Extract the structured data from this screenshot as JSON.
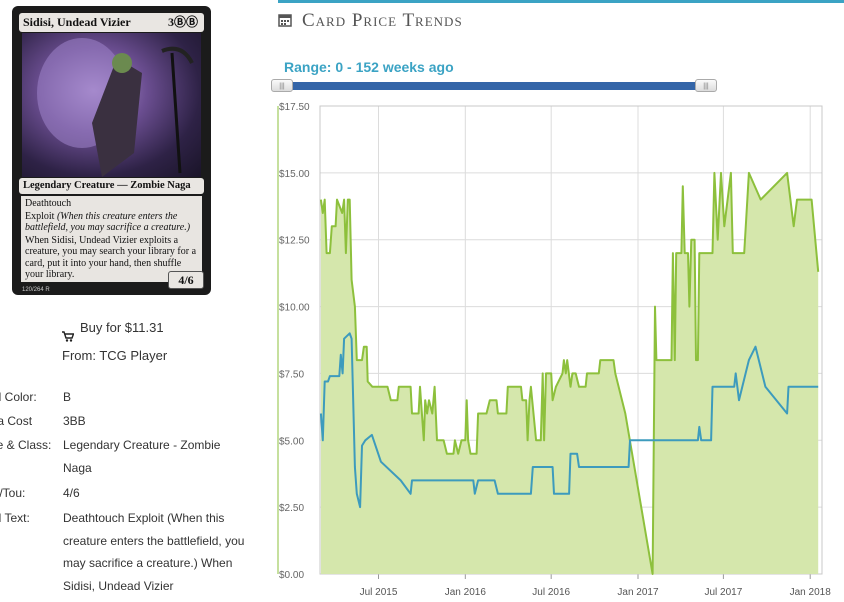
{
  "card": {
    "name": "Sidisi, Undead Vizier",
    "mana": "3ⒷⒷ",
    "type_line": "Legendary Creature — Zombie Naga",
    "keyword": "Deathtouch",
    "exploit": "Exploit",
    "exploit_reminder": "(When this creature enters the battlefield, you may sacrifice a creature.)",
    "ability": "When Sidisi, Undead Vizier exploits a creature, you may search your library for a card, put it into your hand, then shuffle your library.",
    "pt": "4/6",
    "collector": "120/264 R"
  },
  "buy": {
    "price": "Buy for $11.31",
    "from": "From: TCG Player"
  },
  "details": {
    "color_label": "ard Color:",
    "color_value": "B",
    "mana_label": "ana Cost",
    "mana_value": "3BB",
    "type_label": "ype & Class:",
    "type_value": "Legendary Creature - Zombie Naga",
    "powtou_label": "ow/Tou:",
    "powtou_value": "4/6",
    "text_label": "ard Text:",
    "text_value": "Deathtouch Exploit (When this creature enters the battlefield, you may sacrifice a creature.) When Sidisi, Undead Vizier"
  },
  "trends": {
    "title": "Card Price Trends",
    "range": "Range: 0 - 152 weeks ago",
    "handle_left": "|||",
    "handle_right": "|||"
  },
  "colors": {
    "accent": "#3ba3c4",
    "green": "#8dc03c",
    "green_fill": "#d5e7ac",
    "blue": "#3d9bbd"
  },
  "chart_data": {
    "type": "area",
    "ylim": [
      0,
      17.5
    ],
    "yticks": [
      0,
      2.5,
      5,
      7.5,
      10,
      12.5,
      15,
      17.5
    ],
    "ytick_labels": [
      "$0.00",
      "$2.50",
      "$5.00",
      "$7.50",
      "$10.00",
      "$12.50",
      "$15.00",
      "$17.50"
    ],
    "xlim": [
      "2015-02-27",
      "2018-01-26"
    ],
    "xticks": [
      "2015-07-01",
      "2016-01-01",
      "2016-07-01",
      "2017-01-01",
      "2017-07-01",
      "2018-01-01"
    ],
    "xtick_labels": [
      "Jul 2015",
      "Jan 2016",
      "Jul 2016",
      "Jan 2017",
      "Jul 2017",
      "Jan 2018"
    ],
    "series": [
      {
        "points": [
          [
            "2015-03-01",
            14
          ],
          [
            "2015-03-05",
            13.5
          ],
          [
            "2015-03-09",
            14
          ],
          [
            "2015-03-13",
            12
          ],
          [
            "2015-03-20",
            12
          ],
          [
            "2015-03-24",
            13
          ],
          [
            "2015-04-01",
            13
          ],
          [
            "2015-04-04",
            14
          ],
          [
            "2015-04-15",
            13.5
          ],
          [
            "2015-04-19",
            14
          ],
          [
            "2015-04-23",
            12
          ],
          [
            "2015-04-27",
            14
          ],
          [
            "2015-05-01",
            14
          ],
          [
            "2015-05-05",
            11
          ],
          [
            "2015-05-12",
            10
          ],
          [
            "2015-05-16",
            8
          ],
          [
            "2015-05-27",
            8
          ],
          [
            "2015-05-31",
            8.5
          ],
          [
            "2015-06-06",
            8.5
          ],
          [
            "2015-06-08",
            7.2
          ],
          [
            "2015-06-18",
            7
          ],
          [
            "2015-07-20",
            7
          ],
          [
            "2015-07-27",
            6.5
          ],
          [
            "2015-08-10",
            6.5
          ],
          [
            "2015-08-13",
            7
          ],
          [
            "2015-09-07",
            7
          ],
          [
            "2015-09-10",
            6
          ],
          [
            "2015-09-24",
            6
          ],
          [
            "2015-09-27",
            7
          ],
          [
            "2015-10-05",
            5
          ],
          [
            "2015-10-08",
            6.5
          ],
          [
            "2015-10-12",
            6
          ],
          [
            "2015-10-16",
            6.5
          ],
          [
            "2015-10-23",
            6
          ],
          [
            "2015-10-28",
            7
          ],
          [
            "2015-11-02",
            5
          ],
          [
            "2015-11-16",
            5
          ],
          [
            "2015-11-23",
            4.5
          ],
          [
            "2015-12-07",
            4.5
          ],
          [
            "2015-12-10",
            5
          ],
          [
            "2015-12-17",
            4.5
          ],
          [
            "2015-12-24",
            5
          ],
          [
            "2016-01-01",
            5
          ],
          [
            "2016-01-04",
            6.5
          ],
          [
            "2016-01-07",
            5
          ],
          [
            "2016-01-12",
            4.5
          ],
          [
            "2016-01-25",
            4.5
          ],
          [
            "2016-01-28",
            6
          ],
          [
            "2016-02-15",
            6
          ],
          [
            "2016-02-22",
            6.5
          ],
          [
            "2016-03-07",
            6.5
          ],
          [
            "2016-03-10",
            6
          ],
          [
            "2016-03-28",
            6
          ],
          [
            "2016-03-31",
            7
          ],
          [
            "2016-04-28",
            7
          ],
          [
            "2016-05-01",
            6.5
          ],
          [
            "2016-05-09",
            6.5
          ],
          [
            "2016-05-12",
            5
          ],
          [
            "2016-05-16",
            6.5
          ],
          [
            "2016-05-19",
            7
          ],
          [
            "2016-05-30",
            5
          ],
          [
            "2016-06-09",
            5
          ],
          [
            "2016-06-13",
            7.5
          ],
          [
            "2016-06-16",
            5
          ],
          [
            "2016-06-20",
            7.5
          ],
          [
            "2016-07-01",
            7.5
          ],
          [
            "2016-07-04",
            6.5
          ],
          [
            "2016-07-11",
            7
          ],
          [
            "2016-07-25",
            7.5
          ],
          [
            "2016-07-28",
            8
          ],
          [
            "2016-08-01",
            7.5
          ],
          [
            "2016-08-04",
            8
          ],
          [
            "2016-08-11",
            7
          ],
          [
            "2016-08-15",
            7.5
          ],
          [
            "2016-08-22",
            7.5
          ],
          [
            "2016-08-29",
            7
          ],
          [
            "2016-09-12",
            7
          ],
          [
            "2016-09-15",
            7.5
          ],
          [
            "2016-10-10",
            7.5
          ],
          [
            "2016-10-13",
            8
          ],
          [
            "2016-11-10",
            8
          ],
          [
            "2016-11-14",
            7.5
          ],
          [
            "2016-12-05",
            6
          ],
          [
            "2017-02-01",
            0
          ],
          [
            "2017-02-06",
            10
          ],
          [
            "2017-02-09",
            8
          ],
          [
            "2017-03-13",
            8
          ],
          [
            "2017-03-16",
            12
          ],
          [
            "2017-03-20",
            8
          ],
          [
            "2017-03-23",
            12
          ],
          [
            "2017-04-03",
            12
          ],
          [
            "2017-04-06",
            14.5
          ],
          [
            "2017-04-10",
            12
          ],
          [
            "2017-04-17",
            12
          ],
          [
            "2017-04-20",
            10
          ],
          [
            "2017-04-24",
            12.5
          ],
          [
            "2017-05-01",
            12.5
          ],
          [
            "2017-05-04",
            8
          ],
          [
            "2017-05-08",
            8
          ],
          [
            "2017-05-11",
            12
          ],
          [
            "2017-06-08",
            12
          ],
          [
            "2017-06-12",
            15
          ],
          [
            "2017-06-19",
            12.5
          ],
          [
            "2017-06-26",
            15
          ],
          [
            "2017-07-03",
            13
          ],
          [
            "2017-07-10",
            14
          ],
          [
            "2017-07-17",
            15
          ],
          [
            "2017-07-21",
            12
          ],
          [
            "2017-08-14",
            12
          ],
          [
            "2017-08-24",
            15
          ],
          [
            "2017-09-18",
            14
          ],
          [
            "2017-11-13",
            15
          ],
          [
            "2017-11-27",
            13
          ],
          [
            "2017-12-04",
            14
          ],
          [
            "2018-01-04",
            14
          ],
          [
            "2018-01-18",
            11.3
          ]
        ]
      },
      {
        "points": [
          [
            "2015-03-01",
            6
          ],
          [
            "2015-03-05",
            5
          ],
          [
            "2015-03-09",
            7.2
          ],
          [
            "2015-03-16",
            7.2
          ],
          [
            "2015-03-20",
            7.4
          ],
          [
            "2015-04-09",
            7.4
          ],
          [
            "2015-04-12",
            8.2
          ],
          [
            "2015-04-16",
            7.5
          ],
          [
            "2015-04-19",
            8.8
          ],
          [
            "2015-05-01",
            9
          ],
          [
            "2015-05-05",
            8.8
          ],
          [
            "2015-05-12",
            4
          ],
          [
            "2015-05-16",
            3
          ],
          [
            "2015-05-23",
            2.5
          ],
          [
            "2015-05-27",
            4.8
          ],
          [
            "2015-06-03",
            5
          ],
          [
            "2015-06-17",
            5.2
          ],
          [
            "2015-07-06",
            4.2
          ],
          [
            "2015-08-17",
            3.5
          ],
          [
            "2015-09-07",
            3
          ],
          [
            "2015-09-10",
            3.5
          ],
          [
            "2016-01-18",
            3.5
          ],
          [
            "2016-01-21",
            3
          ],
          [
            "2016-01-28",
            3.5
          ],
          [
            "2016-03-03",
            3.5
          ],
          [
            "2016-03-10",
            3
          ],
          [
            "2016-05-19",
            3
          ],
          [
            "2016-05-23",
            4
          ],
          [
            "2016-07-04",
            4
          ],
          [
            "2016-07-07",
            3
          ],
          [
            "2016-08-08",
            3
          ],
          [
            "2016-08-11",
            4.5
          ],
          [
            "2016-08-25",
            4.5
          ],
          [
            "2016-08-29",
            4
          ],
          [
            "2016-12-12",
            4
          ],
          [
            "2016-12-15",
            5
          ],
          [
            "2017-05-08",
            5
          ],
          [
            "2017-05-11",
            5.5
          ],
          [
            "2017-05-15",
            5
          ],
          [
            "2017-06-05",
            5
          ],
          [
            "2017-06-08",
            7
          ],
          [
            "2017-07-24",
            7
          ],
          [
            "2017-07-27",
            7.5
          ],
          [
            "2017-08-03",
            6.5
          ],
          [
            "2017-08-10",
            7
          ],
          [
            "2017-08-17",
            7.5
          ],
          [
            "2017-08-24",
            8
          ],
          [
            "2017-09-07",
            8.5
          ],
          [
            "2017-09-28",
            7
          ],
          [
            "2017-11-13",
            6
          ],
          [
            "2017-11-16",
            7
          ],
          [
            "2018-01-18",
            7
          ]
        ]
      }
    ]
  }
}
